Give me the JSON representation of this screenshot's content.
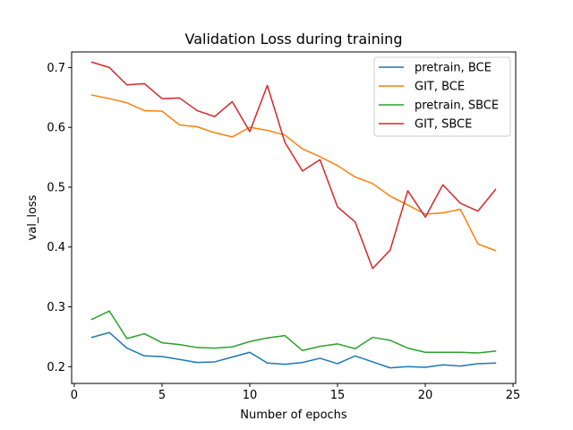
{
  "chart_data": {
    "type": "line",
    "title": "Validation Loss during training",
    "xlabel": "Number of epochs",
    "ylabel": "val_loss",
    "xlim": [
      -0.15,
      25.15
    ],
    "ylim": [
      0.172,
      0.726
    ],
    "xticks": [
      0,
      5,
      10,
      15,
      20,
      25
    ],
    "yticks": [
      0.2,
      0.3,
      0.4,
      0.5,
      0.6,
      0.7
    ],
    "xtick_labels": [
      "0",
      "5",
      "10",
      "15",
      "20",
      "25"
    ],
    "ytick_labels": [
      "0.2",
      "0.3",
      "0.4",
      "0.5",
      "0.6",
      "0.7"
    ],
    "grid": false,
    "legend_position": "top-right",
    "x": [
      1,
      2,
      3,
      4,
      5,
      6,
      7,
      8,
      9,
      10,
      11,
      12,
      13,
      14,
      15,
      16,
      17,
      18,
      19,
      20,
      21,
      22,
      23,
      24
    ],
    "series": [
      {
        "name": "pretrain, BCE",
        "color": "#1f77b4",
        "values": [
          0.249,
          0.257,
          0.231,
          0.218,
          0.217,
          0.212,
          0.207,
          0.208,
          0.216,
          0.224,
          0.206,
          0.204,
          0.207,
          0.214,
          0.205,
          0.218,
          0.208,
          0.198,
          0.2,
          0.199,
          0.203,
          0.201,
          0.205,
          0.206
        ]
      },
      {
        "name": "GIT, BCE",
        "color": "#ff7f0e",
        "values": [
          0.654,
          0.648,
          0.641,
          0.628,
          0.627,
          0.604,
          0.601,
          0.591,
          0.584,
          0.6,
          0.595,
          0.587,
          0.564,
          0.551,
          0.536,
          0.517,
          0.506,
          0.485,
          0.47,
          0.455,
          0.457,
          0.463,
          0.405,
          0.394
        ]
      },
      {
        "name": "pretrain, SBCE",
        "color": "#2ca02c",
        "values": [
          0.279,
          0.293,
          0.247,
          0.255,
          0.24,
          0.237,
          0.232,
          0.231,
          0.233,
          0.242,
          0.248,
          0.252,
          0.227,
          0.234,
          0.238,
          0.23,
          0.249,
          0.244,
          0.231,
          0.224,
          0.224,
          0.224,
          0.223,
          0.226
        ]
      },
      {
        "name": "GIT, SBCE",
        "color": "#d62728",
        "values": [
          0.709,
          0.7,
          0.671,
          0.673,
          0.648,
          0.649,
          0.628,
          0.618,
          0.643,
          0.593,
          0.67,
          0.575,
          0.527,
          0.546,
          0.467,
          0.442,
          0.364,
          0.395,
          0.494,
          0.45,
          0.504,
          0.473,
          0.46,
          0.496
        ]
      }
    ]
  }
}
